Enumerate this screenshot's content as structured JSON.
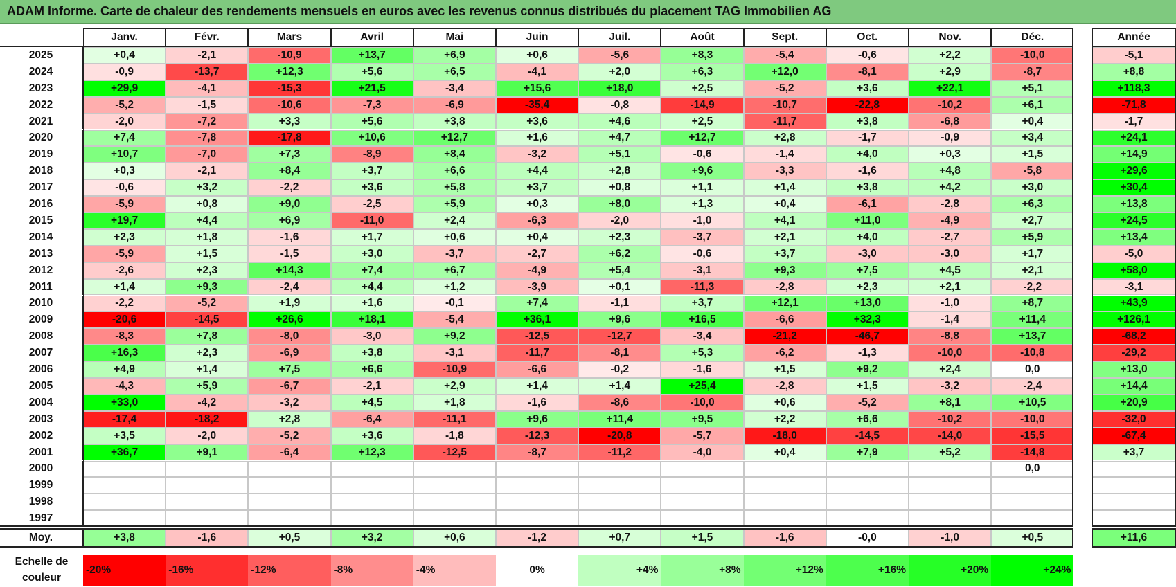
{
  "title": "ADAM Informe. Carte de chaleur des rendements mensuels en euros avec les revenus connus distribués du placement TAG Immobilien AG",
  "months": [
    "Janv.",
    "Févr.",
    "Mars",
    "Avril",
    "Mai",
    "Juin",
    "Juil.",
    "Août",
    "Sept.",
    "Oct.",
    "Nov.",
    "Déc."
  ],
  "year_header": "Année",
  "avg_label": "Moy.",
  "scale_label_line1": "Echelle de",
  "scale_label_line2": "couleur",
  "scale_labels": [
    "-20%",
    "-16%",
    "-12%",
    "-8%",
    "-4%",
    "0%",
    "+4%",
    "+8%",
    "+12%",
    "+16%",
    "+20%",
    "+24%"
  ],
  "colors": {
    "title_bg": "#7fc97f",
    "neg_max": "#ff0000",
    "pos_max": "#00ff00",
    "neutral": "#ffffff"
  },
  "chart_data": {
    "type": "heatmap",
    "title": "ADAM Informe. Carte de chaleur des rendements mensuels en euros avec les revenus connus distribués du placement TAG Immobilien AG",
    "x": [
      "Janv.",
      "Févr.",
      "Mars",
      "Avril",
      "Mai",
      "Juin",
      "Juil.",
      "Août",
      "Sept.",
      "Oct.",
      "Nov.",
      "Déc."
    ],
    "rows": [
      {
        "year": "2025",
        "values": [
          "+0,4",
          "-2,1",
          "-10,9",
          "+13,7",
          "+6,9",
          "+0,6",
          "-5,6",
          "+8,3",
          "-5,4",
          "-0,6",
          "+2,2",
          "-10,0"
        ],
        "annual": "-5,1"
      },
      {
        "year": "2024",
        "values": [
          "-0,9",
          "-13,7",
          "+12,3",
          "+5,6",
          "+6,5",
          "-4,1",
          "+2,0",
          "+6,3",
          "+12,0",
          "-8,1",
          "+2,9",
          "-8,7"
        ],
        "annual": "+8,8"
      },
      {
        "year": "2023",
        "values": [
          "+29,9",
          "-4,1",
          "-15,3",
          "+21,5",
          "-3,4",
          "+15,6",
          "+18,0",
          "+2,5",
          "-5,2",
          "+3,6",
          "+22,1",
          "+5,1"
        ],
        "annual": "+118,3"
      },
      {
        "year": "2022",
        "values": [
          "-5,2",
          "-1,5",
          "-10,6",
          "-7,3",
          "-6,9",
          "-35,4",
          "-0,8",
          "-14,9",
          "-10,7",
          "-22,8",
          "-10,2",
          "+6,1"
        ],
        "annual": "-71,8"
      },
      {
        "year": "2021",
        "values": [
          "-2,0",
          "-7,2",
          "+3,3",
          "+5,6",
          "+3,8",
          "+3,6",
          "+4,6",
          "+2,5",
          "-11,7",
          "+3,8",
          "-6,8",
          "+0,4"
        ],
        "annual": "-1,7"
      },
      {
        "year": "2020",
        "values": [
          "+7,4",
          "-7,8",
          "-17,8",
          "+10,6",
          "+12,7",
          "+1,6",
          "+4,7",
          "+12,7",
          "+2,8",
          "-1,7",
          "-0,9",
          "+3,4"
        ],
        "annual": "+24,1"
      },
      {
        "year": "2019",
        "values": [
          "+10,7",
          "-7,0",
          "+7,3",
          "-8,9",
          "+8,4",
          "-3,2",
          "+5,1",
          "-0,6",
          "-1,4",
          "+4,0",
          "+0,3",
          "+1,5"
        ],
        "annual": "+14,9"
      },
      {
        "year": "2018",
        "values": [
          "+0,3",
          "-2,1",
          "+8,4",
          "+3,7",
          "+6,6",
          "+4,4",
          "+2,8",
          "+9,6",
          "-3,3",
          "-1,6",
          "+4,8",
          "-5,8"
        ],
        "annual": "+29,6"
      },
      {
        "year": "2017",
        "values": [
          "-0,6",
          "+3,2",
          "-2,2",
          "+3,6",
          "+5,8",
          "+3,7",
          "+0,8",
          "+1,1",
          "+1,4",
          "+3,8",
          "+4,2",
          "+3,0"
        ],
        "annual": "+30,4"
      },
      {
        "year": "2016",
        "values": [
          "-5,9",
          "+0,8",
          "+9,0",
          "-2,5",
          "+5,9",
          "+0,3",
          "+8,0",
          "+1,3",
          "+0,4",
          "-6,1",
          "-2,8",
          "+6,3"
        ],
        "annual": "+13,8"
      },
      {
        "year": "2015",
        "values": [
          "+19,7",
          "+4,4",
          "+6,9",
          "-11,0",
          "+2,4",
          "-6,3",
          "-2,0",
          "-1,0",
          "+4,1",
          "+11,0",
          "-4,9",
          "+2,7"
        ],
        "annual": "+24,5"
      },
      {
        "year": "2014",
        "values": [
          "+2,3",
          "+1,8",
          "-1,6",
          "+1,7",
          "+0,6",
          "+0,4",
          "+2,3",
          "-3,7",
          "+2,1",
          "+4,0",
          "-2,7",
          "+5,9"
        ],
        "annual": "+13,4"
      },
      {
        "year": "2013",
        "values": [
          "-5,9",
          "+1,5",
          "-1,5",
          "+3,0",
          "-3,7",
          "-2,7",
          "+6,2",
          "-0,6",
          "+3,7",
          "-3,0",
          "-3,0",
          "+1,7"
        ],
        "annual": "-5,0"
      },
      {
        "year": "2012",
        "values": [
          "-2,6",
          "+2,3",
          "+14,3",
          "+7,4",
          "+6,7",
          "-4,9",
          "+5,4",
          "-3,1",
          "+9,3",
          "+7,5",
          "+4,5",
          "+2,1"
        ],
        "annual": "+58,0"
      },
      {
        "year": "2011",
        "values": [
          "+1,4",
          "+9,3",
          "-2,4",
          "+4,4",
          "+1,2",
          "-3,9",
          "+0,1",
          "-11,3",
          "-2,8",
          "+2,3",
          "+2,1",
          "-2,2"
        ],
        "annual": "-3,1"
      },
      {
        "year": "2010",
        "values": [
          "-2,2",
          "-5,2",
          "+1,9",
          "+1,6",
          "-0,1",
          "+7,4",
          "-1,1",
          "+3,7",
          "+12,1",
          "+13,0",
          "-1,0",
          "+8,7"
        ],
        "annual": "+43,9"
      },
      {
        "year": "2009",
        "values": [
          "-20,6",
          "-14,5",
          "+26,6",
          "+18,1",
          "-5,4",
          "+36,1",
          "+9,6",
          "+16,5",
          "-6,6",
          "+32,3",
          "-1,4",
          "+11,4"
        ],
        "annual": "+126,1"
      },
      {
        "year": "2008",
        "values": [
          "-8,3",
          "+7,8",
          "-8,0",
          "-3,0",
          "+9,2",
          "-12,5",
          "-12,7",
          "-3,4",
          "-21,2",
          "-46,7",
          "-8,8",
          "+13,7"
        ],
        "annual": "-68,2"
      },
      {
        "year": "2007",
        "values": [
          "+16,3",
          "+2,3",
          "-6,9",
          "+3,8",
          "-3,1",
          "-11,7",
          "-8,1",
          "+5,3",
          "-6,2",
          "-1,3",
          "-10,0",
          "-10,8"
        ],
        "annual": "-29,2"
      },
      {
        "year": "2006",
        "values": [
          "+4,9",
          "+1,4",
          "+7,5",
          "+6,6",
          "-10,9",
          "-6,6",
          "-0,2",
          "-1,6",
          "+1,5",
          "+9,2",
          "+2,4",
          "0,0"
        ],
        "annual": "+13,0"
      },
      {
        "year": "2005",
        "values": [
          "-4,3",
          "+5,9",
          "-6,7",
          "-2,1",
          "+2,9",
          "+1,4",
          "+1,4",
          "+25,4",
          "-2,8",
          "+1,5",
          "-3,2",
          "-2,4"
        ],
        "annual": "+14,4"
      },
      {
        "year": "2004",
        "values": [
          "+33,0",
          "-4,2",
          "-3,2",
          "+4,5",
          "+1,8",
          "-1,6",
          "-8,6",
          "-10,0",
          "+0,6",
          "-5,2",
          "+8,1",
          "+10,5"
        ],
        "annual": "+20,9"
      },
      {
        "year": "2003",
        "values": [
          "-17,4",
          "-18,2",
          "+2,8",
          "-6,4",
          "-11,1",
          "+9,6",
          "+11,4",
          "+9,5",
          "+2,2",
          "+6,6",
          "-10,2",
          "-10,0"
        ],
        "annual": "-32,0"
      },
      {
        "year": "2002",
        "values": [
          "+3,5",
          "-2,0",
          "-5,2",
          "+3,6",
          "-1,8",
          "-12,3",
          "-20,8",
          "-5,7",
          "-18,0",
          "-14,5",
          "-14,0",
          "-15,5"
        ],
        "annual": "-67,4"
      },
      {
        "year": "2001",
        "values": [
          "+36,7",
          "+9,1",
          "-6,4",
          "+12,3",
          "-12,5",
          "-8,7",
          "-11,2",
          "-4,0",
          "+0,4",
          "+7,9",
          "+5,2",
          "-14,8"
        ],
        "annual": "+3,7"
      },
      {
        "year": "2000",
        "values": [
          "",
          "",
          "",
          "",
          "",
          "",
          "",
          "",
          "",
          "",
          "",
          "0,0"
        ],
        "annual": ""
      },
      {
        "year": "1999",
        "values": [
          "",
          "",
          "",
          "",
          "",
          "",
          "",
          "",
          "",
          "",
          "",
          ""
        ],
        "annual": ""
      },
      {
        "year": "1998",
        "values": [
          "",
          "",
          "",
          "",
          "",
          "",
          "",
          "",
          "",
          "",
          "",
          ""
        ],
        "annual": ""
      },
      {
        "year": "1997",
        "values": [
          "",
          "",
          "",
          "",
          "",
          "",
          "",
          "",
          "",
          "",
          "",
          ""
        ],
        "annual": ""
      }
    ],
    "average": {
      "values": [
        "+3,8",
        "-1,6",
        "+0,5",
        "+3,2",
        "+0,6",
        "-1,2",
        "+0,7",
        "+1,5",
        "-1,6",
        "-0,0",
        "-1,0",
        "+0,5"
      ],
      "annual": "+11,6"
    }
  }
}
